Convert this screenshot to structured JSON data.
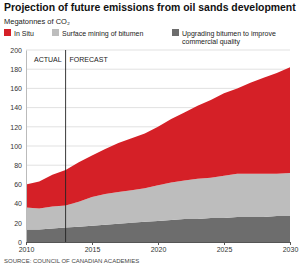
{
  "chart_data": {
    "type": "area",
    "stacked": true,
    "title": "Projection of future emissions from oil sands development",
    "subtitle": "Megatonnes of CO₂",
    "source": "SOURCE: COUNCIL OF CANADIAN ACADEMIES",
    "annotations": {
      "divider_x": 2013,
      "left": "ACTUAL",
      "right": "FORECAST"
    },
    "x": [
      2010,
      2011,
      2012,
      2013,
      2014,
      2015,
      2016,
      2017,
      2018,
      2019,
      2020,
      2021,
      2022,
      2023,
      2024,
      2025,
      2026,
      2027,
      2028,
      2029,
      2030
    ],
    "series": [
      {
        "name": "In Situ",
        "color": "#d52027",
        "values": [
          24,
          28,
          33,
          37,
          41,
          43,
          47,
          51,
          54,
          57,
          61,
          66,
          71,
          76,
          81,
          86,
          89,
          95,
          100,
          105,
          110
        ]
      },
      {
        "name": "Surface mining of bitumen",
        "color": "#bdbdbd",
        "values": [
          23,
          22,
          23,
          23,
          26,
          30,
          32,
          33,
          34,
          35,
          37,
          39,
          40,
          42,
          42,
          44,
          45,
          45,
          45,
          44,
          45
        ]
      },
      {
        "name": "Upgrading bitumen to improve commercial quality",
        "color": "#6d6d6d",
        "values": [
          13,
          13,
          14,
          15,
          16,
          17,
          18,
          19,
          20,
          21,
          22,
          23,
          24,
          24,
          25,
          25,
          26,
          26,
          26,
          27,
          27
        ]
      }
    ],
    "xlim": [
      2010,
      2030
    ],
    "xticks": [
      2010,
      2015,
      2020,
      2025,
      2030
    ],
    "ylim": [
      0,
      200
    ],
    "yticks": [
      0,
      20,
      40,
      60,
      80,
      100,
      120,
      140,
      160,
      180,
      200
    ],
    "grid": true
  }
}
